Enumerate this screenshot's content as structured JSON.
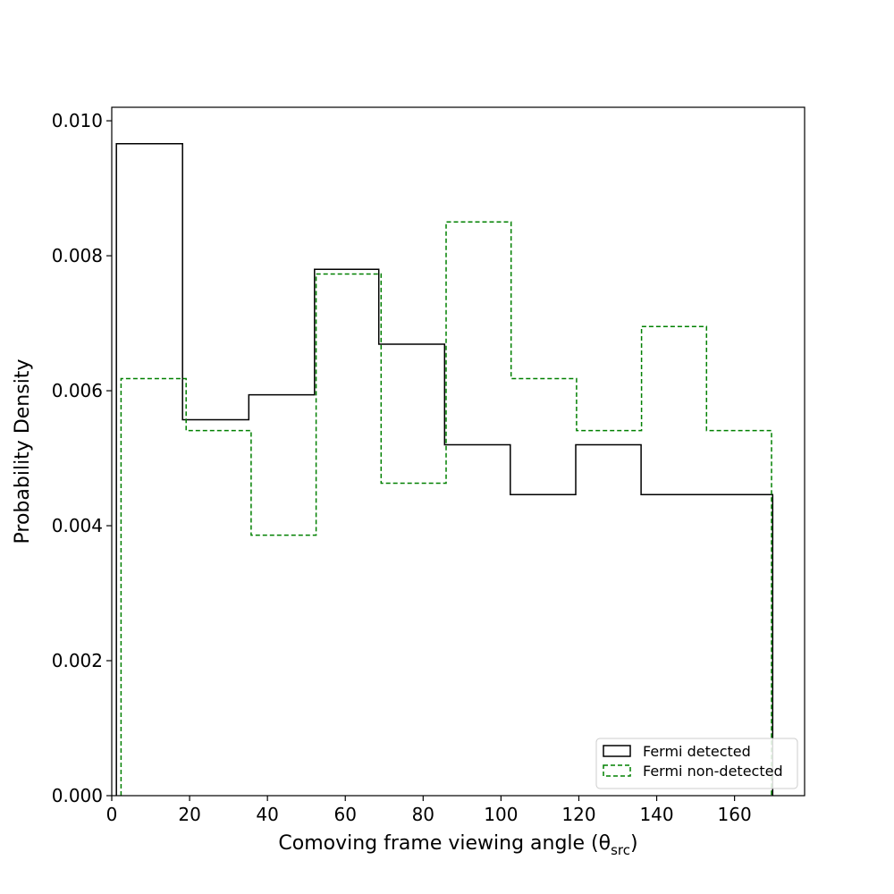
{
  "chart_data": {
    "type": "histogram",
    "xlabel": "Comoving frame viewing angle (θ",
    "xlabel_sub": "src",
    "xlabel_close": ")",
    "ylabel": "Probability Density",
    "xlim": [
      0,
      178
    ],
    "ylim": [
      0,
      0.0102
    ],
    "xticks": [
      0,
      20,
      40,
      60,
      80,
      100,
      120,
      140,
      160
    ],
    "yticks": [
      0.0,
      0.002,
      0.004,
      0.006,
      0.008,
      0.01
    ],
    "ytick_labels": [
      "0.000",
      "0.002",
      "0.004",
      "0.006",
      "0.008",
      "0.010"
    ],
    "legend_position": "lower-right",
    "grid": false,
    "series": [
      {
        "name": "Fermi detected",
        "color": "#000000",
        "style": "solid",
        "edges": [
          1.2,
          18.2,
          35.2,
          52.1,
          68.6,
          85.5,
          102.4,
          119.2,
          136.0,
          152.9,
          169.8
        ],
        "values": [
          0.00966,
          0.00557,
          0.00594,
          0.0078,
          0.00669,
          0.0052,
          0.00446,
          0.0052,
          0.00446,
          0.00446
        ]
      },
      {
        "name": "Fermi non-detected",
        "color": "#008000",
        "style": "dashed",
        "edges": [
          2.4,
          19.1,
          35.8,
          52.5,
          69.2,
          85.9,
          102.6,
          119.4,
          136.1,
          152.8,
          169.5
        ],
        "values": [
          0.00618,
          0.00541,
          0.00386,
          0.00773,
          0.00463,
          0.0085,
          0.00618,
          0.00541,
          0.00695,
          0.00541
        ]
      }
    ]
  }
}
